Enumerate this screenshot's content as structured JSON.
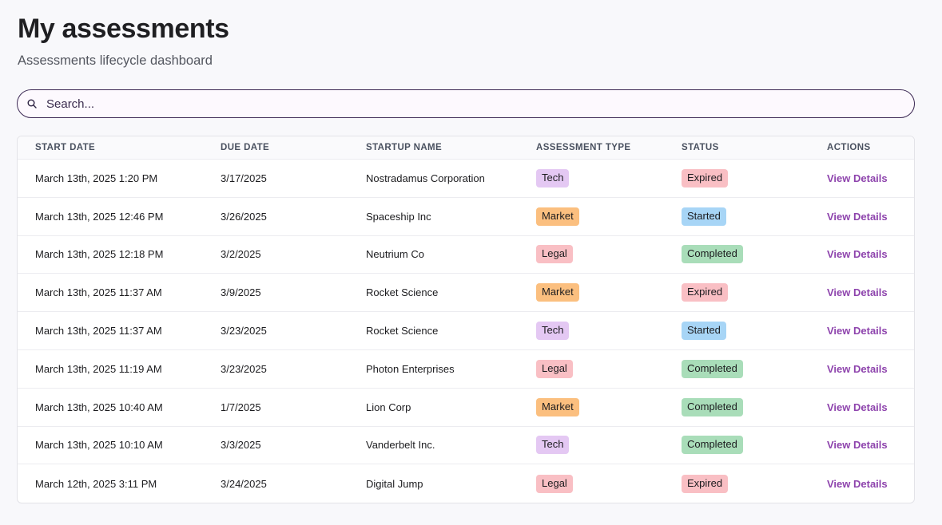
{
  "header": {
    "title": "My assessments",
    "subtitle": "Assessments lifecycle dashboard"
  },
  "search": {
    "placeholder": "Search...",
    "value": "",
    "icon": "search-icon"
  },
  "colors": {
    "Tech": "#e4c8f3",
    "Market": "#fbbf7f",
    "Legal": "#f9bfc4",
    "Expired": "#f9bfc4",
    "Started": "#a7d5f6",
    "Completed": "#a9ddb9",
    "link": "#8e44ad",
    "search_border": "#3d2a55"
  },
  "table": {
    "columns": [
      "START DATE",
      "DUE DATE",
      "STARTUP NAME",
      "ASSESSMENT TYPE",
      "STATUS",
      "ACTIONS"
    ],
    "rows": [
      {
        "start": "March 13th, 2025 1:20 PM",
        "due": "3/17/2025",
        "startup": "Nostradamus Corporation",
        "type": "Tech",
        "status": "Expired",
        "action": "View Details"
      },
      {
        "start": "March 13th, 2025 12:46 PM",
        "due": "3/26/2025",
        "startup": "Spaceship Inc",
        "type": "Market",
        "status": "Started",
        "action": "View Details"
      },
      {
        "start": "March 13th, 2025 12:18 PM",
        "due": "3/2/2025",
        "startup": "Neutrium Co",
        "type": "Legal",
        "status": "Completed",
        "action": "View Details"
      },
      {
        "start": "March 13th, 2025 11:37 AM",
        "due": "3/9/2025",
        "startup": "Rocket Science",
        "type": "Market",
        "status": "Expired",
        "action": "View Details"
      },
      {
        "start": "March 13th, 2025 11:37 AM",
        "due": "3/23/2025",
        "startup": "Rocket Science",
        "type": "Tech",
        "status": "Started",
        "action": "View Details"
      },
      {
        "start": "March 13th, 2025 11:19 AM",
        "due": "3/23/2025",
        "startup": "Photon Enterprises",
        "type": "Legal",
        "status": "Completed",
        "action": "View Details"
      },
      {
        "start": "March 13th, 2025 10:40 AM",
        "due": "1/7/2025",
        "startup": "Lion Corp",
        "type": "Market",
        "status": "Completed",
        "action": "View Details"
      },
      {
        "start": "March 13th, 2025 10:10 AM",
        "due": "3/3/2025",
        "startup": "Vanderbelt Inc.",
        "type": "Tech",
        "status": "Completed",
        "action": "View Details"
      },
      {
        "start": "March 12th, 2025 3:11 PM",
        "due": "3/24/2025",
        "startup": "Digital Jump",
        "type": "Legal",
        "status": "Expired",
        "action": "View Details"
      }
    ]
  }
}
